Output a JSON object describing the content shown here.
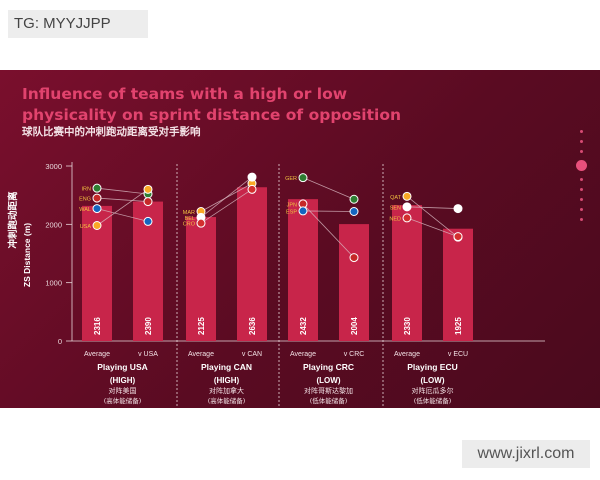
{
  "tag_label": "TG: MYYJJPP",
  "watermark": "www.jixrl.com",
  "title": "Influence of teams with a high or low physicality on sprint distance of opposition",
  "subtitle": "球队比赛中的冲刺跑动距离受对手影响",
  "colors": {
    "bar": "#c8254a",
    "title": "#e2436e",
    "panel": "#6a0d27"
  },
  "chart_data": {
    "type": "bar",
    "ylabel_cn": "冲刺跑动距离",
    "ylabel": "ZS Distance (m)",
    "ylim": [
      0,
      3000
    ],
    "yticks": [
      "0",
      "1000",
      "2000",
      "3000"
    ],
    "groups": [
      {
        "title": "Playing USA",
        "level": "(HIGH)",
        "cn1": "对阵美国",
        "cn2": "(高体能储备)",
        "bars": [
          {
            "label": "Average",
            "value": 2316,
            "display": "2316"
          },
          {
            "label": "v USA",
            "value": 2390,
            "display": "2390"
          }
        ],
        "teams": [
          {
            "code": "IRN",
            "v1": 2620,
            "v2": 2520
          },
          {
            "code": "ENG",
            "v1": 2450,
            "v2": 2390
          },
          {
            "code": "WAL",
            "v1": 2270,
            "v2": 2050
          },
          {
            "code": "USA",
            "v1": 1980,
            "v2": 2600
          }
        ]
      },
      {
        "title": "Playing CAN",
        "level": "(HIGH)",
        "cn1": "对阵加拿大",
        "cn2": "(高体能储备)",
        "bars": [
          {
            "label": "Average",
            "value": 2125,
            "display": "2125"
          },
          {
            "label": "v CAN",
            "value": 2636,
            "display": "2636"
          }
        ],
        "teams": [
          {
            "code": "MAR",
            "v1": 2220,
            "v2": 2700
          },
          {
            "code": "BEL",
            "v1": 2120,
            "v2": 2810
          },
          {
            "code": "CRO",
            "v1": 2020,
            "v2": 2600
          }
        ]
      },
      {
        "title": "Playing CRC",
        "level": "(LOW)",
        "cn1": "对阵哥斯达黎加",
        "cn2": "(低体能储备)",
        "bars": [
          {
            "label": "Average",
            "value": 2432,
            "display": "2432"
          },
          {
            "label": "v CRC",
            "value": 2004,
            "display": "2004"
          }
        ],
        "teams": [
          {
            "code": "GER",
            "v1": 2800,
            "v2": 2430
          },
          {
            "code": "JPN",
            "v1": 2350,
            "v2": 1430
          },
          {
            "code": "ESP",
            "v1": 2230,
            "v2": 2220
          }
        ]
      },
      {
        "title": "Playing ECU",
        "level": "(LOW)",
        "cn1": "对阵厄瓜多尔",
        "cn2": "(低体能储备)",
        "bars": [
          {
            "label": "Average",
            "value": 2330,
            "display": "2330"
          },
          {
            "label": "v ECU",
            "value": 1925,
            "display": "1925"
          }
        ],
        "teams": [
          {
            "code": "QAT",
            "v1": 2480,
            "v2": 1780
          },
          {
            "code": "SEN",
            "v1": 2300,
            "v2": 2270
          },
          {
            "code": "NED",
            "v1": 2110,
            "v2": 1790
          }
        ]
      }
    ]
  }
}
